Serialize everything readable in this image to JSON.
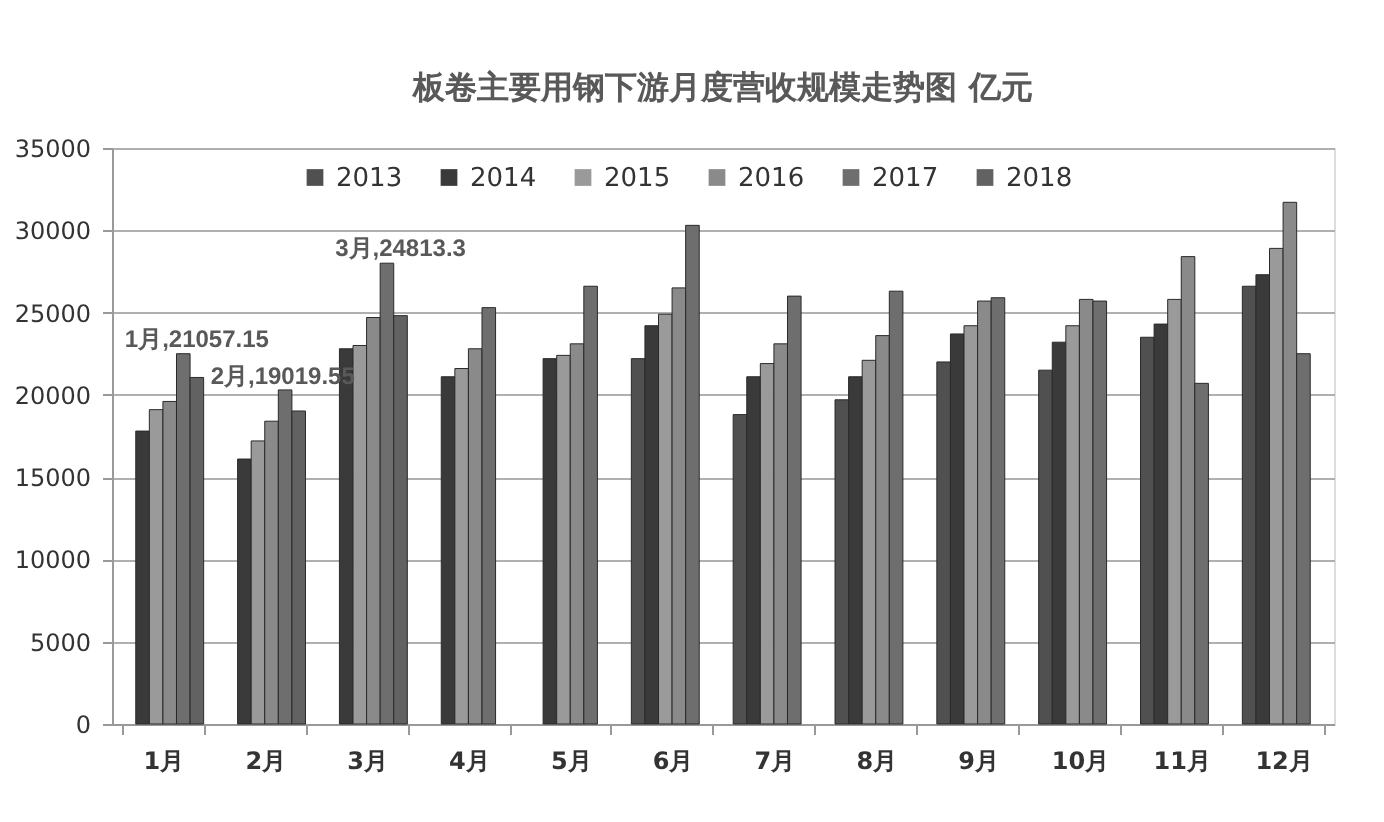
{
  "chart_data": {
    "type": "bar",
    "title": "板卷主要用钢下游月度营收规模走势图 亿元",
    "categories": [
      "1月",
      "2月",
      "3月",
      "4月",
      "5月",
      "6月",
      "7月",
      "8月",
      "9月",
      "10月",
      "11月",
      "12月"
    ],
    "series": [
      {
        "name": "2013",
        "color": "#505050",
        "values": [
          null,
          null,
          null,
          null,
          null,
          22200,
          18800,
          19700,
          22000,
          21500,
          23500,
          26600
        ]
      },
      {
        "name": "2014",
        "color": "#3a3a3a",
        "values": [
          17800,
          16100,
          22800,
          21100,
          22200,
          24200,
          21100,
          21100,
          23700,
          23200,
          24300,
          27300
        ]
      },
      {
        "name": "2015",
        "color": "#9a9a9a",
        "values": [
          19100,
          17200,
          23000,
          21600,
          22400,
          24900,
          21900,
          22100,
          24200,
          24200,
          25800,
          28900
        ]
      },
      {
        "name": "2016",
        "color": "#8a8a8a",
        "values": [
          19600,
          18400,
          24700,
          22800,
          23100,
          26500,
          23100,
          23600,
          25700,
          25800,
          28400,
          31700
        ]
      },
      {
        "name": "2017",
        "color": "#6e6e6e",
        "values": [
          22500,
          20300,
          28000,
          25300,
          26600,
          30300,
          26000,
          26300,
          25900,
          25700,
          20700,
          22500
        ]
      },
      {
        "name": "2018",
        "color": "#626262",
        "values": [
          21057.15,
          19019.55,
          24813.3,
          null,
          null,
          null,
          null,
          null,
          null,
          null,
          null,
          null
        ],
        "value_labels": [
          "1月,21057.15",
          "2月,19019.55",
          "3月,24813.3",
          null,
          null,
          null,
          null,
          null,
          null,
          null,
          null,
          null
        ]
      }
    ],
    "ylim": [
      0,
      35000
    ],
    "yticks": [
      0,
      5000,
      10000,
      15000,
      20000,
      25000,
      30000,
      35000
    ],
    "grid": "y",
    "legend": "top"
  }
}
